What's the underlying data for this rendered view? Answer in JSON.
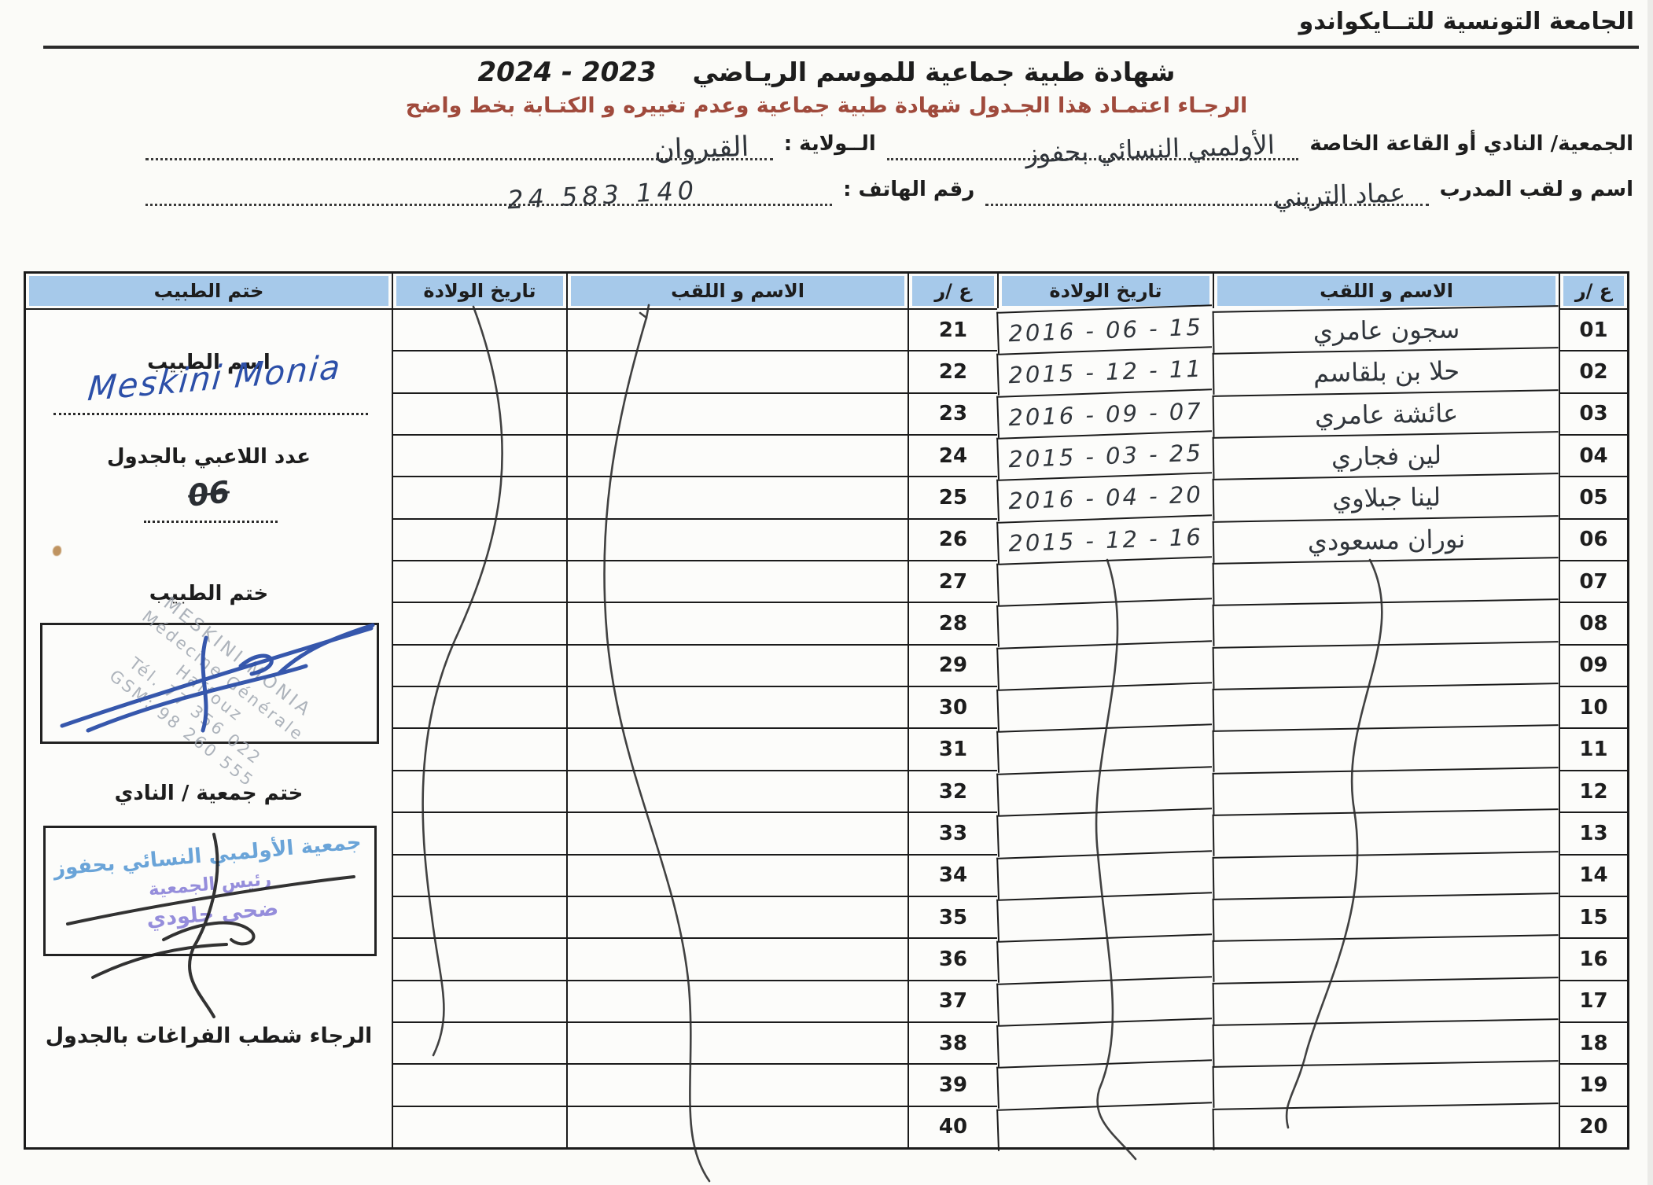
{
  "header": {
    "federation": "الجامعة التونسية للتــايكواندو",
    "title": "شهادة طبية جماعية  للموسم الريـاضي",
    "season": "2024 - 2023",
    "instruction": "الرجـاء اعتمـاد هذا الجـدول  شهادة طبية جماعية وعدم تغييره و الكتـابة بخط واضح"
  },
  "form": {
    "club_label": "الجمعية/ النادي أو القاعة الخاصة",
    "club_value": "الأولمبي النسائي بحفوز",
    "state_label": "الــولاية :",
    "state_value": "القيروان",
    "coach_label": "اسم و لقب المدرب",
    "coach_value": "عماد التريني",
    "phone_label": "رقم الهاتف :",
    "phone_value": "24 583 140"
  },
  "table": {
    "headers": {
      "num": "ع /ر",
      "name": "الاسم و اللقب",
      "dob": "تاريخ الولادة",
      "stamp": "ختم الطبيب"
    },
    "rows": [
      {
        "n_left": "21",
        "n_right": "01",
        "name": "سجون عامري",
        "dob": "2016 - 06 - 15"
      },
      {
        "n_left": "22",
        "n_right": "02",
        "name": "حلا بن بلقاسم",
        "dob": "2015 - 12 - 11"
      },
      {
        "n_left": "23",
        "n_right": "03",
        "name": "عائشة عامري",
        "dob": "2016 - 09 - 07"
      },
      {
        "n_left": "24",
        "n_right": "04",
        "name": "لين فجاري",
        "dob": "2015 - 03 - 25"
      },
      {
        "n_left": "25",
        "n_right": "05",
        "name": "لينا جبلاوي",
        "dob": "2016 - 04 - 20"
      },
      {
        "n_left": "26",
        "n_right": "06",
        "name": "نوران مسعودي",
        "dob": "2015 - 12 - 16"
      },
      {
        "n_left": "27",
        "n_right": "07",
        "name": "",
        "dob": ""
      },
      {
        "n_left": "28",
        "n_right": "08",
        "name": "",
        "dob": ""
      },
      {
        "n_left": "29",
        "n_right": "09",
        "name": "",
        "dob": ""
      },
      {
        "n_left": "30",
        "n_right": "10",
        "name": "",
        "dob": ""
      },
      {
        "n_left": "31",
        "n_right": "11",
        "name": "",
        "dob": ""
      },
      {
        "n_left": "32",
        "n_right": "12",
        "name": "",
        "dob": ""
      },
      {
        "n_left": "33",
        "n_right": "13",
        "name": "",
        "dob": ""
      },
      {
        "n_left": "34",
        "n_right": "14",
        "name": "",
        "dob": ""
      },
      {
        "n_left": "35",
        "n_right": "15",
        "name": "",
        "dob": ""
      },
      {
        "n_left": "36",
        "n_right": "16",
        "name": "",
        "dob": ""
      },
      {
        "n_left": "37",
        "n_right": "17",
        "name": "",
        "dob": ""
      },
      {
        "n_left": "38",
        "n_right": "18",
        "name": "",
        "dob": ""
      },
      {
        "n_left": "39",
        "n_right": "19",
        "name": "",
        "dob": ""
      },
      {
        "n_left": "40",
        "n_right": "20",
        "name": "",
        "dob": ""
      }
    ]
  },
  "side_panel": {
    "doctor_name_label": "اسم الطبيب",
    "doctor_signature": "Meskini Monia",
    "players_count_label": "عدد اللاعبي بالجدول",
    "players_count_value": "06",
    "doctor_stamp_label": "ختم الطبيب",
    "doctor_stamp_lines": [
      "MESKINI MONIA",
      "Médecine Générale",
      "Haffouz",
      "Tél. 77 356 022",
      "GSM: 98 260 555"
    ],
    "club_stamp_label": "ختم جمعية / النادي",
    "club_stamp_line1": "جمعية الأولمبي النسائي بحفوز",
    "club_stamp_line2": "رئيس الجمعية",
    "club_stamp_line3": "ضحى جلودي",
    "footer_note": "الرجاء شطب  الفراغات بالجدول"
  },
  "colors": {
    "header_band": "#a6c9ea",
    "instruction_red": "#a04a3c",
    "pen_blue": "#2c4fa8",
    "stamp_purple": "#8a82d8",
    "stamp_light_blue": "#5b9bd5",
    "stamp_gray": "#9aa2ac",
    "ink": "#30353b"
  }
}
